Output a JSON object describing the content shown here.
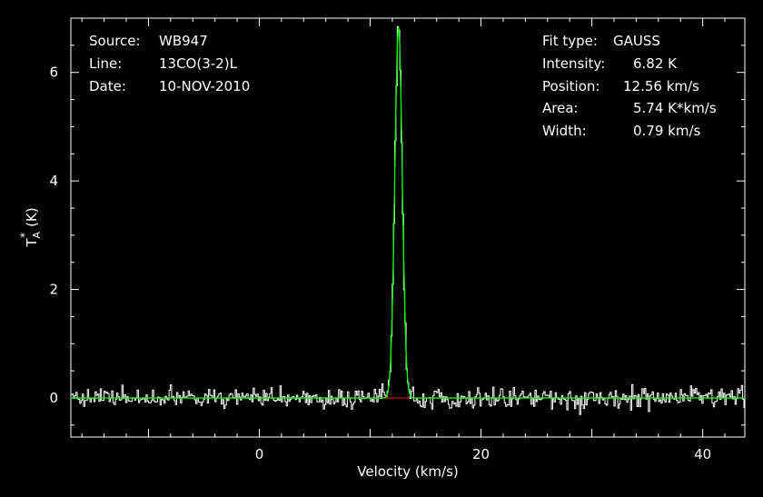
{
  "chart_data": {
    "type": "line",
    "xlabel": "Velocity (km/s)",
    "ylabel_base": "T",
    "ylabel_sub": "A",
    "ylabel_sup": "*",
    "ylabel_unit": "(K)",
    "xlim": [
      -17.0,
      43.8
    ],
    "ylim": [
      -0.72,
      7.0
    ],
    "x_ticks": [
      0,
      20,
      40
    ],
    "x_tick_labels": [
      "0",
      "20",
      "40"
    ],
    "y_ticks": [
      0,
      2,
      4,
      6
    ],
    "y_tick_labels": [
      "0",
      "2",
      "4",
      "6"
    ],
    "fit": {
      "amplitude": 6.82,
      "center": 12.56,
      "fwhm": 0.79,
      "baseline": 0
    },
    "noise_rms": 0.09,
    "colors": {
      "spectrum": "#ffffff",
      "fit": "#00ff00",
      "baseline": "#ff0000",
      "axes": "#ffffff",
      "background": "#000000"
    }
  },
  "source_info": {
    "source_label": "Source:",
    "source_value": "WB947",
    "line_label": "Line:",
    "line_value": "13CO(3-2)L",
    "date_label": "Date:",
    "date_value": "10-NOV-2010"
  },
  "fit_info": {
    "fit_type_label": "Fit type:",
    "fit_type_value": "GAUSS",
    "intensity_label": "Intensity:",
    "intensity_value": "6.82 K",
    "position_label": "Position:",
    "position_value": "12.56 km/s",
    "area_label": "Area:",
    "area_value": "5.74 K*km/s",
    "width_label": "Width:",
    "width_value": "0.79 km/s"
  }
}
